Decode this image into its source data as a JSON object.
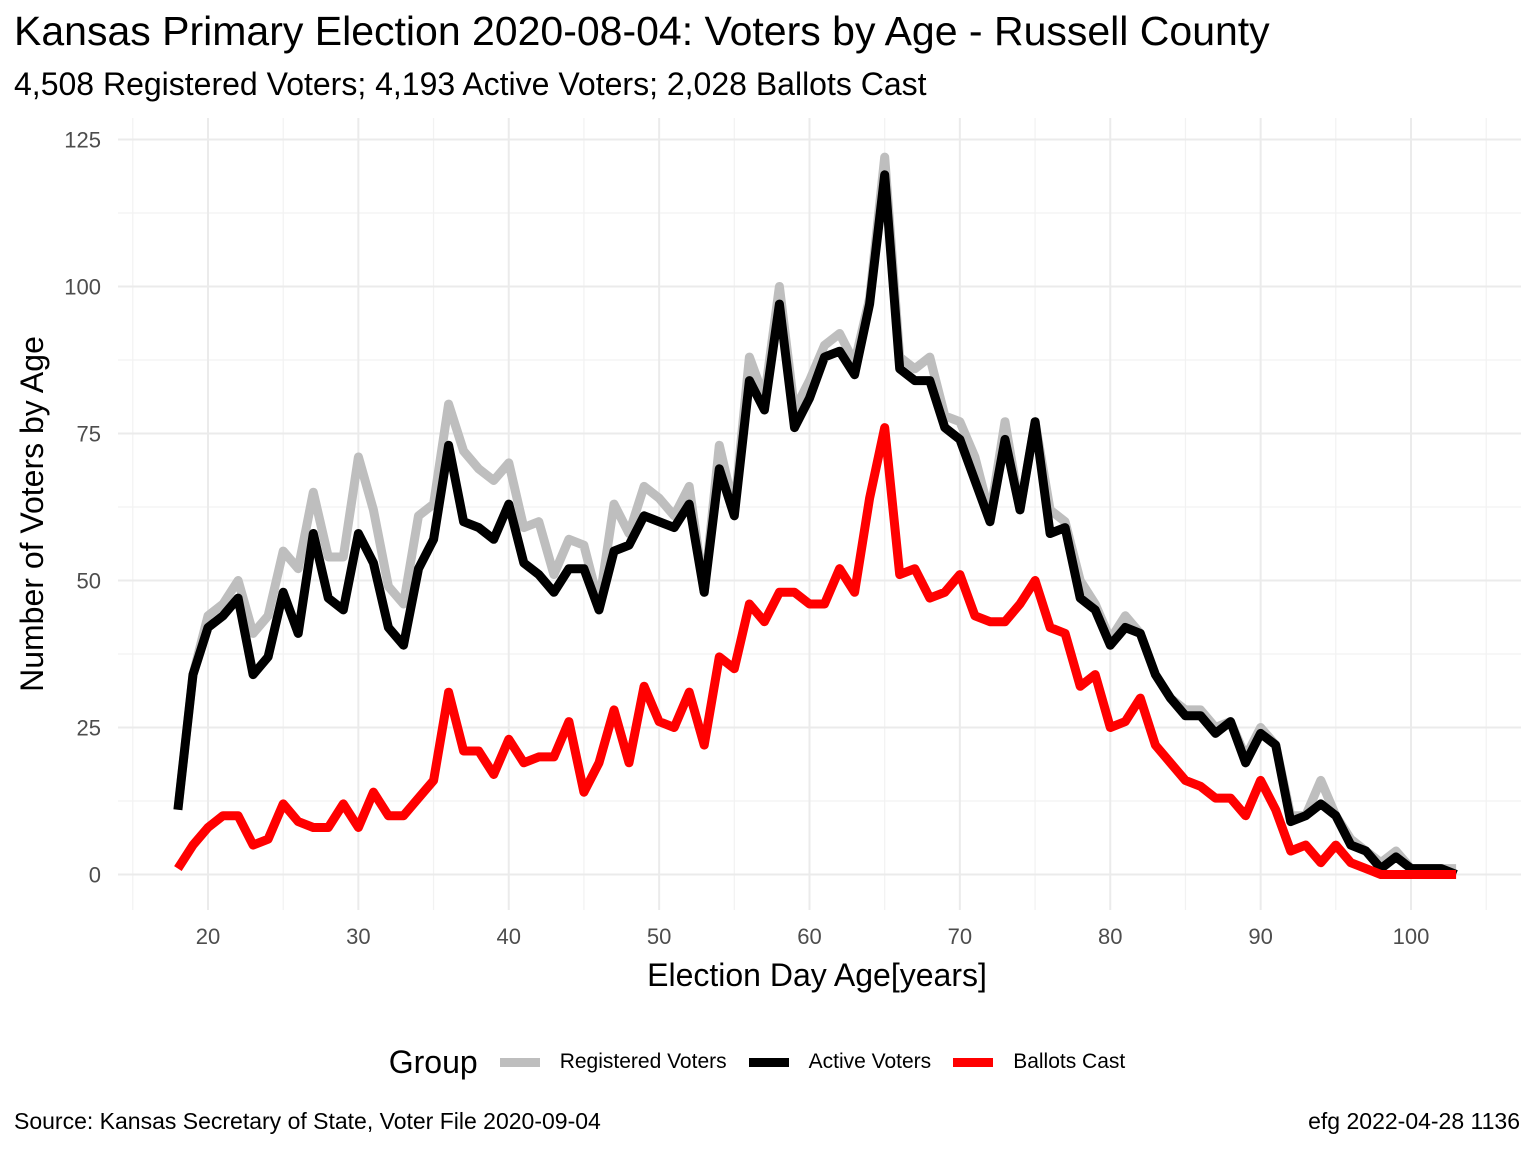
{
  "title": "Kansas Primary Election 2020-08-04:  Voters by Age - Russell County",
  "subtitle": "4,508 Registered Voters; 4,193 Active Voters; 2,028 Ballots Cast",
  "caption_left": "Source:  Kansas Secretary of State, Voter File  2020-09-04",
  "caption_right": "efg 2022-04-28 1136",
  "legend": {
    "title": "Group"
  },
  "chart_data": {
    "type": "line",
    "xlabel": "Election Day Age[years]",
    "ylabel": "Number of Voters by Age",
    "xlim": [
      18,
      103
    ],
    "ylim": [
      0,
      125
    ],
    "xticks": [
      20,
      30,
      40,
      50,
      60,
      70,
      80,
      90,
      100
    ],
    "yticks": [
      0,
      25,
      50,
      75,
      100,
      125
    ],
    "grid": true,
    "legend_position": "bottom",
    "x": [
      18,
      19,
      20,
      21,
      22,
      23,
      24,
      25,
      26,
      27,
      28,
      29,
      30,
      31,
      32,
      33,
      34,
      35,
      36,
      37,
      38,
      39,
      40,
      41,
      42,
      43,
      44,
      45,
      46,
      47,
      48,
      49,
      50,
      51,
      52,
      53,
      54,
      55,
      56,
      57,
      58,
      59,
      60,
      61,
      62,
      63,
      64,
      65,
      66,
      67,
      68,
      69,
      70,
      71,
      72,
      73,
      74,
      75,
      76,
      77,
      78,
      79,
      80,
      81,
      82,
      83,
      84,
      85,
      86,
      87,
      88,
      89,
      90,
      91,
      92,
      93,
      94,
      95,
      96,
      97,
      98,
      99,
      100,
      101,
      102,
      103
    ],
    "series": [
      {
        "name": "Registered Voters",
        "color": "#bebebe",
        "values": [
          11,
          34,
          44,
          46,
          50,
          41,
          44,
          55,
          52,
          65,
          54,
          54,
          71,
          62,
          49,
          46,
          61,
          63,
          80,
          72,
          69,
          67,
          70,
          59,
          60,
          51,
          57,
          56,
          46,
          63,
          58,
          66,
          64,
          61,
          66,
          48,
          73,
          62,
          88,
          81,
          100,
          79,
          84,
          90,
          92,
          87,
          98,
          122,
          88,
          86,
          88,
          78,
          77,
          71,
          61,
          77,
          62,
          77,
          62,
          60,
          50,
          46,
          40,
          44,
          41,
          34,
          30,
          28,
          28,
          25,
          26,
          20,
          25,
          22,
          10,
          10,
          16,
          10,
          6,
          4,
          2,
          4,
          1,
          1,
          1,
          1
        ]
      },
      {
        "name": "Active Voters",
        "color": "#000000",
        "values": [
          11,
          34,
          42,
          44,
          47,
          34,
          37,
          48,
          41,
          58,
          47,
          45,
          58,
          53,
          42,
          39,
          52,
          57,
          73,
          60,
          59,
          57,
          63,
          53,
          51,
          48,
          52,
          52,
          45,
          55,
          56,
          61,
          60,
          59,
          63,
          48,
          69,
          61,
          84,
          79,
          97,
          76,
          81,
          88,
          89,
          85,
          97,
          119,
          86,
          84,
          84,
          76,
          74,
          67,
          60,
          74,
          62,
          77,
          58,
          59,
          47,
          45,
          39,
          42,
          41,
          34,
          30,
          27,
          27,
          24,
          26,
          19,
          24,
          22,
          9,
          10,
          12,
          10,
          5,
          4,
          1,
          3,
          1,
          1,
          1,
          0
        ]
      },
      {
        "name": "Ballots Cast",
        "color": "#ff0000",
        "values": [
          1,
          5,
          8,
          10,
          10,
          5,
          6,
          12,
          9,
          8,
          8,
          12,
          8,
          14,
          10,
          10,
          13,
          16,
          31,
          21,
          21,
          17,
          23,
          19,
          20,
          20,
          26,
          14,
          19,
          28,
          19,
          32,
          26,
          25,
          31,
          22,
          37,
          35,
          46,
          43,
          48,
          48,
          46,
          46,
          52,
          48,
          64,
          76,
          51,
          52,
          47,
          48,
          51,
          44,
          43,
          43,
          46,
          50,
          42,
          41,
          32,
          34,
          25,
          26,
          30,
          22,
          19,
          16,
          15,
          13,
          13,
          10,
          16,
          11,
          4,
          5,
          2,
          5,
          2,
          1,
          0,
          0,
          0,
          0,
          0,
          0
        ]
      }
    ]
  }
}
